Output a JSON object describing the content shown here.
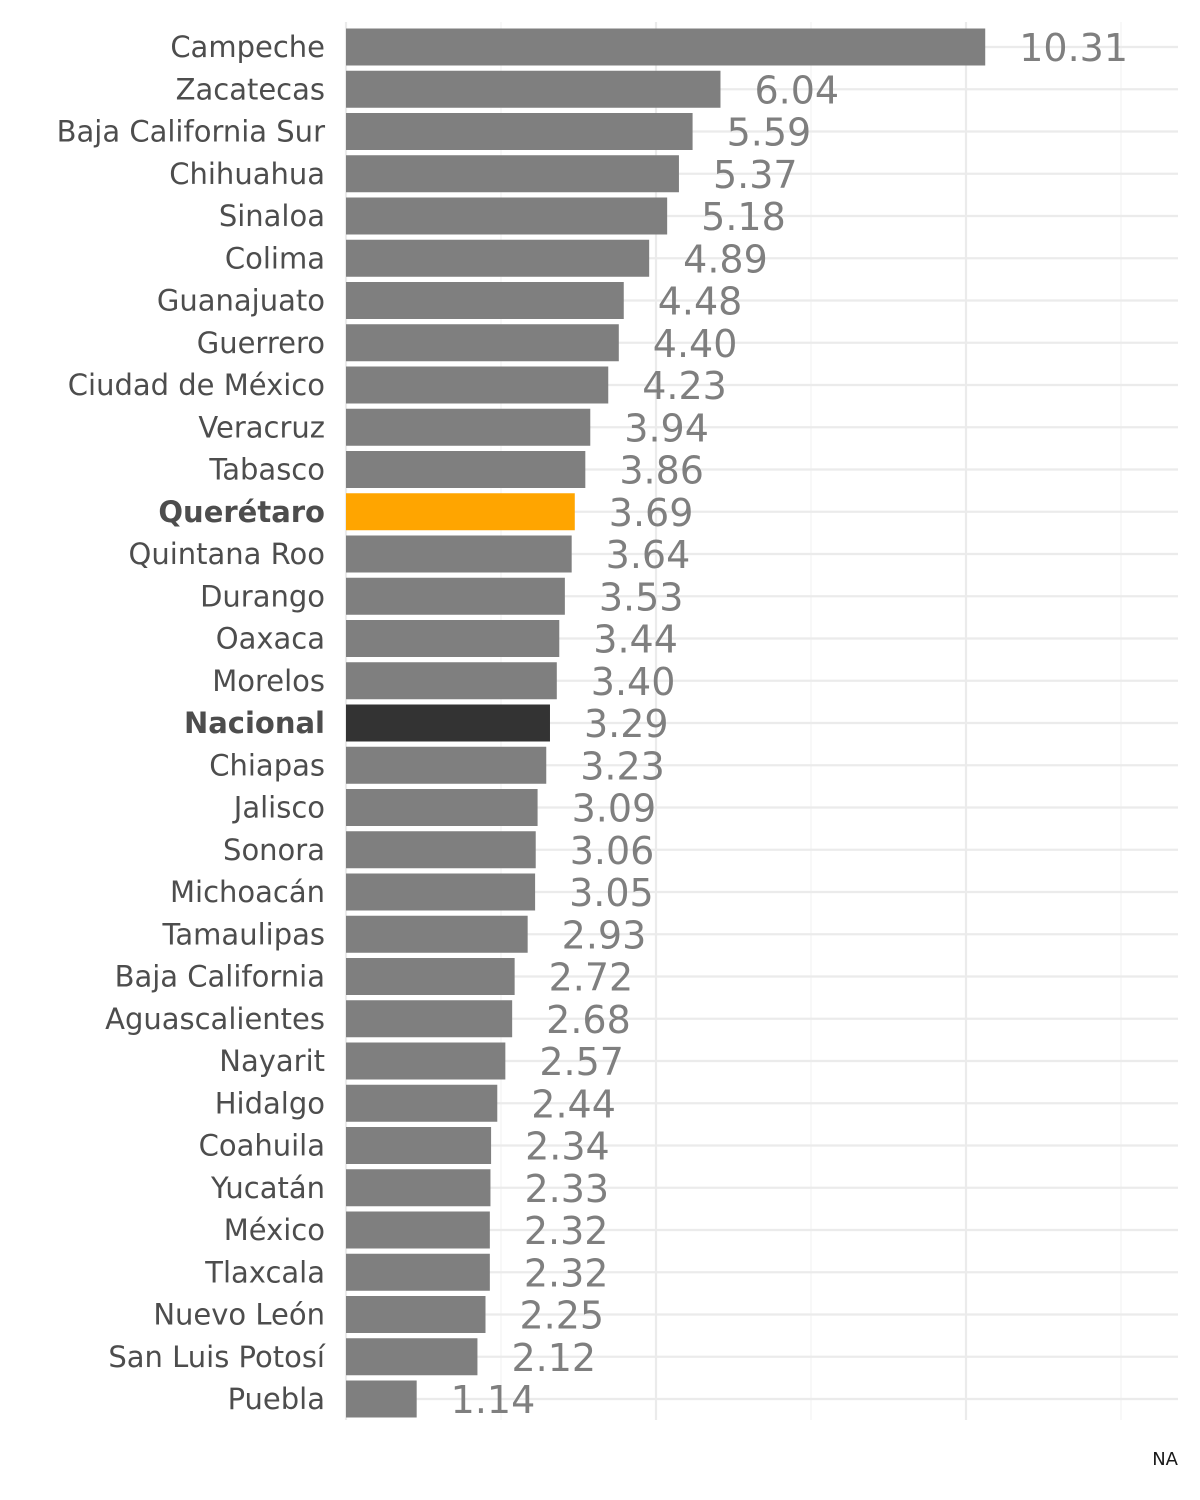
{
  "chart_data": {
    "type": "bar",
    "orientation": "horizontal",
    "categories": [
      "Campeche",
      "Zacatecas",
      "Baja California Sur",
      "Chihuahua",
      "Sinaloa",
      "Colima",
      "Guanajuato",
      "Guerrero",
      "Ciudad de México",
      "Veracruz",
      "Tabasco",
      "Querétaro",
      "Quintana Roo",
      "Durango",
      "Oaxaca",
      "Morelos",
      "Nacional",
      "Chiapas",
      "Jalisco",
      "Sonora",
      "Michoacán",
      "Tamaulipas",
      "Baja California",
      "Aguascalientes",
      "Nayarit",
      "Hidalgo",
      "Coahuila",
      "Yucatán",
      "México",
      "Tlaxcala",
      "Nuevo León",
      "San Luis Potosí",
      "Puebla"
    ],
    "values": [
      10.31,
      6.04,
      5.59,
      5.37,
      5.18,
      4.89,
      4.48,
      4.4,
      4.23,
      3.94,
      3.86,
      3.69,
      3.64,
      3.53,
      3.44,
      3.4,
      3.29,
      3.23,
      3.09,
      3.06,
      3.05,
      2.93,
      2.72,
      2.68,
      2.57,
      2.44,
      2.34,
      2.33,
      2.32,
      2.32,
      2.25,
      2.12,
      1.14
    ],
    "value_labels": [
      "10.31",
      "6.04",
      "5.59",
      "5.37",
      "5.18",
      "4.89",
      "4.48",
      "4.40",
      "4.23",
      "3.94",
      "3.86",
      "3.69",
      "3.64",
      "3.53",
      "3.44",
      "3.40",
      "3.29",
      "3.23",
      "3.09",
      "3.06",
      "3.05",
      "2.93",
      "2.72",
      "2.68",
      "2.57",
      "2.44",
      "2.34",
      "2.33",
      "2.32",
      "2.32",
      "2.25",
      "2.12",
      "1.14"
    ],
    "highlight": {
      "Querétaro": "#ffa500",
      "Nacional": "#333333"
    },
    "bar_color": "#7f7f7f",
    "label_color": "#4d4d4d",
    "value_label_color": "#7f7f7f",
    "xlim": [
      0,
      13.5
    ],
    "grid": true,
    "caption": "NA"
  }
}
